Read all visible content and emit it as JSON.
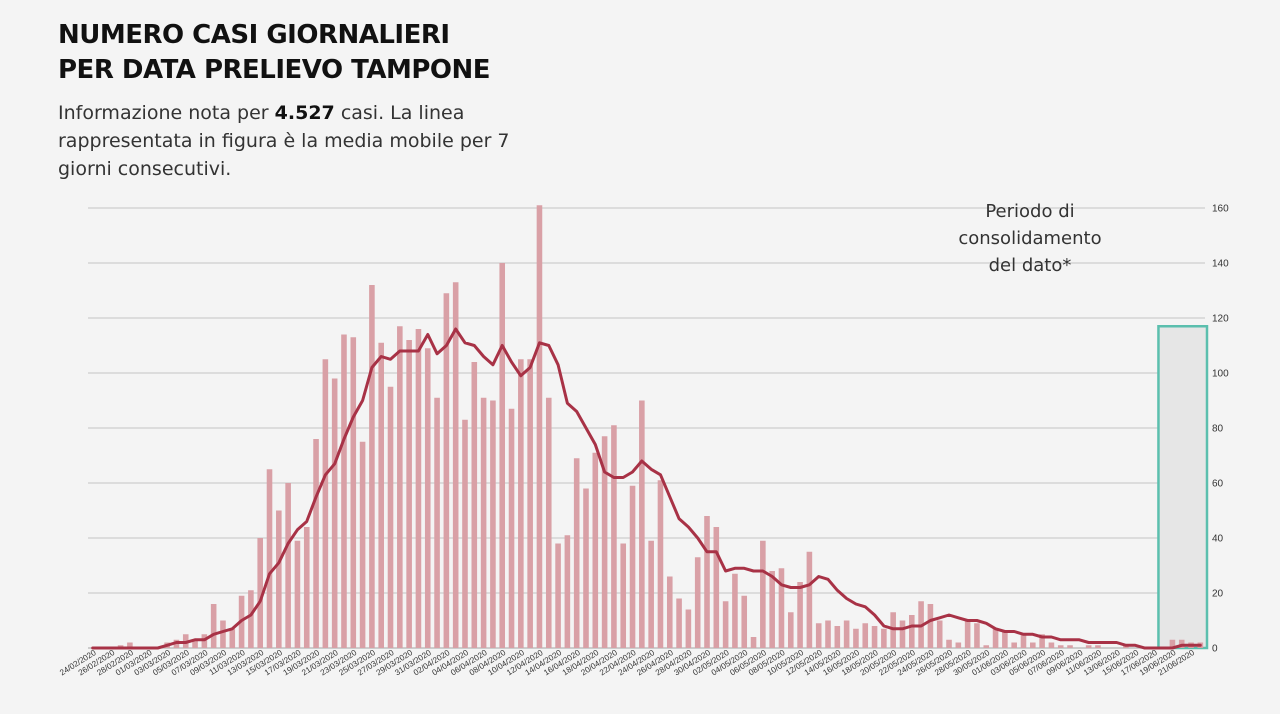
{
  "header": {
    "title_line1": "NUMERO CASI GIORNALIERI",
    "title_line2": "PER DATA PRELIEVO TAMPONE",
    "subtitle_pre": "Informazione nota per",
    "subtitle_number": "4.527",
    "subtitle_post": "casi. La linea rappresentata in figura è la media mobile per 7 giorni consecutivi."
  },
  "annotation": {
    "text_line1": "Periodo di",
    "text_line2": "consolidamento",
    "text_line3": "del dato*"
  },
  "colors": {
    "bar": "#d9a0a6",
    "line": "#a83246",
    "consolidation_border": "#5bbfae",
    "consolidation_fill": "#e6e6e6",
    "grid": "#b5b5b5"
  },
  "chart_data": {
    "type": "bar",
    "title": "NUMERO CASI GIORNALIERI PER DATA PRELIEVO TAMPONE",
    "start_date": "24/02/2020",
    "end_date": "21/06/2020",
    "x_tick_labels": [
      "24/02/2020",
      "26/02/2020",
      "28/02/2020",
      "01/03/2020",
      "03/03/2020",
      "05/03/2020",
      "07/03/2020",
      "09/03/2020",
      "11/03/2020",
      "13/03/2020",
      "15/03/2020",
      "17/03/2020",
      "19/03/2020",
      "21/03/2020",
      "23/03/2020",
      "25/03/2020",
      "27/03/2020",
      "29/03/2020",
      "31/03/2020",
      "02/04/2020",
      "04/04/2020",
      "06/04/2020",
      "08/04/2020",
      "10/04/2020",
      "12/04/2020",
      "14/04/2020",
      "16/04/2020",
      "18/04/2020",
      "20/04/2020",
      "22/04/2020",
      "24/04/2020",
      "26/04/2020",
      "28/04/2020",
      "30/04/2020",
      "02/05/2020",
      "04/05/2020",
      "06/05/2020",
      "08/05/2020",
      "10/05/2020",
      "12/05/2020",
      "14/05/2020",
      "16/05/2020",
      "18/05/2020",
      "20/05/2020",
      "22/05/2020",
      "24/05/2020",
      "26/05/2020",
      "28/05/2020",
      "30/05/2020",
      "01/06/2020",
      "03/06/2020",
      "05/06/2020",
      "07/06/2020",
      "09/06/2020",
      "11/06/2020",
      "13/06/2020",
      "15/06/2020",
      "17/06/2020",
      "19/06/2020",
      "21/06/2020"
    ],
    "y_ticks": [
      0,
      20,
      40,
      60,
      80,
      100,
      120,
      140,
      160
    ],
    "ylim": [
      0,
      160
    ],
    "grid": true,
    "consolidation_days": 5,
    "series": [
      {
        "name": "casi giornalieri",
        "kind": "bar",
        "values": [
          0,
          0,
          0,
          1,
          2,
          0,
          0,
          0,
          2,
          3,
          5,
          3,
          5,
          16,
          10,
          7,
          19,
          21,
          40,
          65,
          50,
          60,
          39,
          44,
          76,
          105,
          98,
          114,
          113,
          75,
          132,
          111,
          95,
          117,
          112,
          116,
          109,
          91,
          129,
          133,
          83,
          104,
          91,
          90,
          140,
          87,
          105,
          105,
          161,
          91,
          38,
          41,
          69,
          58,
          71,
          77,
          81,
          38,
          59,
          90,
          39,
          61,
          26,
          18,
          14,
          33,
          48,
          44,
          17,
          27,
          19,
          4,
          39,
          28,
          29,
          13,
          24,
          35,
          9,
          10,
          8,
          10,
          7,
          9,
          8,
          7,
          13,
          10,
          12,
          17,
          16,
          10,
          3,
          2,
          10,
          9,
          1,
          7,
          6,
          2,
          5,
          2,
          5,
          2,
          1,
          1,
          0,
          1,
          1,
          0,
          0,
          1,
          0,
          0,
          0,
          0,
          3,
          3,
          2,
          2
        ]
      },
      {
        "name": "media mobile 7 giorni",
        "kind": "line",
        "values": [
          0,
          0,
          0,
          0,
          0,
          0,
          0,
          0,
          1,
          2,
          2,
          3,
          3,
          5,
          6,
          7,
          10,
          12,
          17,
          27,
          31,
          38,
          43,
          46,
          55,
          63,
          67,
          76,
          84,
          90,
          102,
          106,
          105,
          108,
          108,
          108,
          114,
          107,
          110,
          116,
          111,
          110,
          106,
          103,
          110,
          104,
          99,
          102,
          111,
          110,
          103,
          89,
          86,
          80,
          74,
          64,
          62,
          62,
          64,
          68,
          65,
          63,
          55,
          47,
          44,
          40,
          35,
          35,
          28,
          29,
          29,
          28,
          28,
          26,
          23,
          22,
          22,
          23,
          26,
          25,
          21,
          18,
          16,
          15,
          12,
          8,
          7,
          7,
          8,
          8,
          10,
          11,
          12,
          11,
          10,
          10,
          9,
          7,
          6,
          6,
          5,
          5,
          4,
          4,
          3,
          3,
          3,
          2,
          2,
          2,
          2,
          1,
          1,
          0,
          0,
          0,
          0,
          1,
          1,
          1
        ]
      }
    ]
  }
}
